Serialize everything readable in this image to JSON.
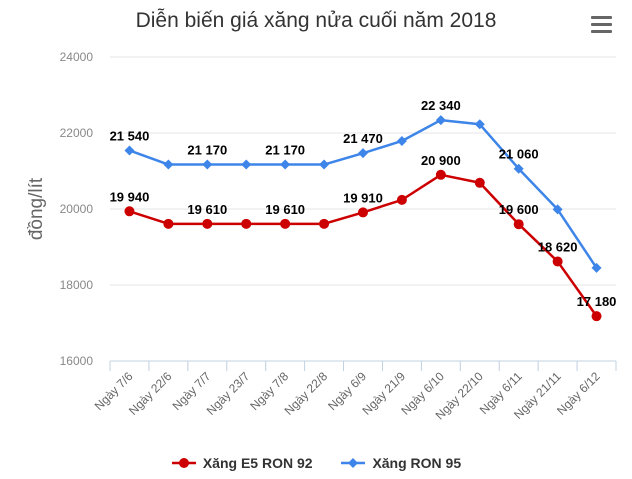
{
  "header": {
    "title": "Diễn biến giá xăng nửa cuối năm 2018",
    "menu_icon": "hamburger-menu-icon"
  },
  "chart_data": {
    "type": "line",
    "title": "Diễn biến giá xăng nửa cuối năm 2018",
    "xlabel": "",
    "ylabel": "đồng/lít",
    "ylim": [
      16000,
      24000
    ],
    "yticks": [
      16000,
      18000,
      20000,
      22000,
      24000
    ],
    "ytick_labels": [
      "16000",
      "18000",
      "20000",
      "22000",
      "24000"
    ],
    "grid": true,
    "legend_position": "bottom",
    "categories": [
      "Ngày 7/6",
      "Ngày 22/6",
      "Ngày 7/7",
      "Ngày 23/7",
      "Ngày 7/8",
      "Ngày 22/8",
      "Ngày 6/9",
      "Ngày 21/9",
      "Ngày 6/10",
      "Ngày 22/10",
      "Ngày 6/11",
      "Ngày 21/11",
      "Ngày 6/12"
    ],
    "series": [
      {
        "name": "Xăng E5 RON 92",
        "color": "#cc0000",
        "marker": "circle",
        "values": [
          19940,
          19610,
          19610,
          19610,
          19610,
          19610,
          19910,
          20240,
          20900,
          20690,
          19600,
          18620,
          17180
        ],
        "labels": [
          "19 940",
          "",
          "19 610",
          "",
          "19 610",
          "",
          "19 910",
          "",
          "20 900",
          "",
          "19 600",
          "18 620",
          "17 180"
        ]
      },
      {
        "name": "Xăng RON 95",
        "color": "#3d85e8",
        "marker": "diamond",
        "values": [
          21540,
          21170,
          21170,
          21170,
          21170,
          21170,
          21470,
          21790,
          22340,
          22230,
          21060,
          19990,
          18450
        ],
        "labels": [
          "21 540",
          "",
          "21 170",
          "",
          "21 170",
          "",
          "21 470",
          "",
          "22 340",
          "",
          "21 060",
          "",
          ""
        ]
      }
    ]
  },
  "legend": {
    "items": [
      {
        "label": "Xăng E5 RON 92",
        "color": "#cc0000"
      },
      {
        "label": "Xăng RON 95",
        "color": "#3d85e8"
      }
    ]
  }
}
